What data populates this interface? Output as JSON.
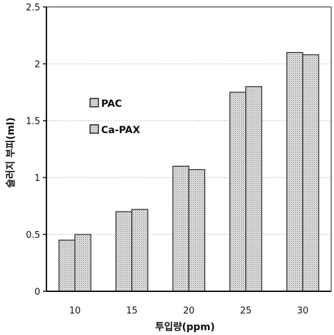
{
  "chart_data": {
    "type": "bar",
    "categories": [
      "10",
      "15",
      "20",
      "25",
      "30"
    ],
    "series": [
      {
        "name": "PAC",
        "values": [
          0.45,
          0.7,
          1.1,
          1.75,
          2.1
        ]
      },
      {
        "name": "Ca-PAX",
        "values": [
          0.5,
          0.72,
          1.07,
          1.8,
          2.08
        ]
      }
    ],
    "xlabel": "투입량(ppm)",
    "ylabel": "슬러지 부피(ml)",
    "ylim": [
      0,
      2.5
    ],
    "yticks": [
      "0",
      "0.5",
      "1",
      "1.5",
      "2",
      "2.5"
    ],
    "grid": true,
    "legend_position": "upper-left",
    "colors": {
      "bar_fill": "#cfcfcf",
      "bar_stroke": "#222222",
      "grid": "#bdbdbd",
      "axis": "#111111"
    }
  }
}
